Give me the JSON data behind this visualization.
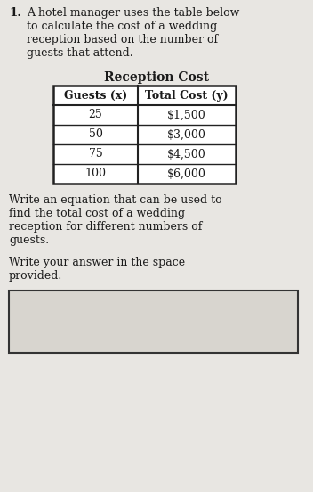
{
  "problem_number": "1.",
  "intro_text": "A hotel manager uses the table below\nto calculate the cost of a wedding\nreception based on the number of\nguests that attend.",
  "table_title": "Reception Cost",
  "col_headers": [
    "Guests (x)",
    "Total Cost (y)"
  ],
  "rows": [
    [
      "25",
      "$1,500"
    ],
    [
      "50",
      "$3,000"
    ],
    [
      "75",
      "$4,500"
    ],
    [
      "100",
      "$6,000"
    ]
  ],
  "prompt_text1": "Write an equation that can be used to\nfind the total cost of a wedding\nreception for different numbers of\nguests.",
  "prompt_text2": "Write your answer in the space\nprovided.",
  "page_bg": "#e8e6e2",
  "text_color": "#1a1a1a",
  "table_border": "#222222",
  "answer_box_bg": "#d8d5cf"
}
